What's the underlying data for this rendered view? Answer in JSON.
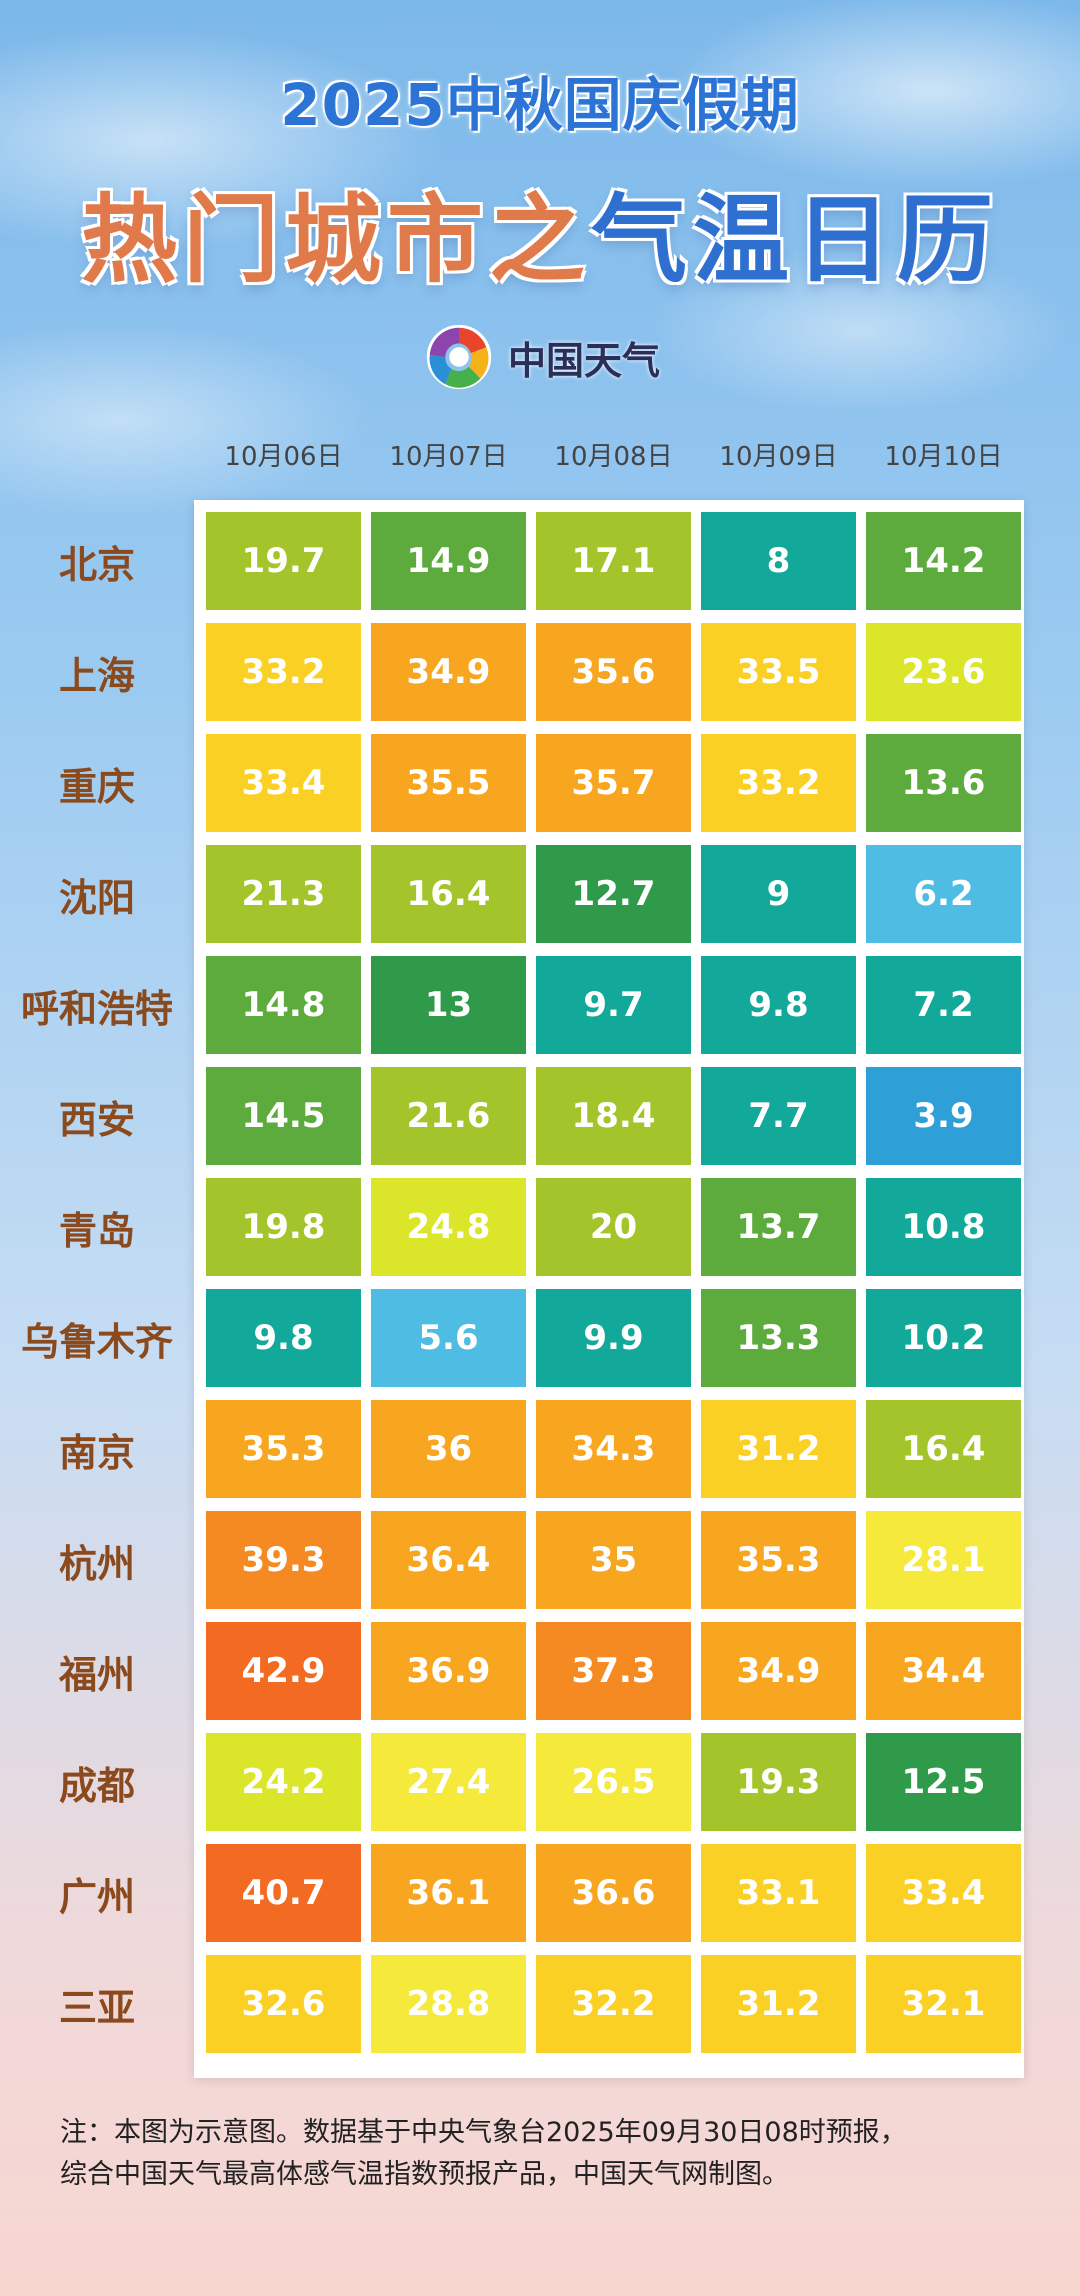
{
  "title_line1": "2025中秋国庆假期",
  "title_line2_part_a": "热门城市之",
  "title_line2_part_b": "气温日历",
  "logo": {
    "icon": "china-weather-logo-icon",
    "text": "中国天气"
  },
  "footnote": {
    "line1": "注：本图为示意图。数据基于中央气象台2025年09月30日08时预报，",
    "line2": "综合中国天气最高体感气温指数预报产品，中国天气网制图。"
  },
  "chart_data": {
    "type": "heatmap",
    "x": [
      "10月06日",
      "10月07日",
      "10月08日",
      "10月09日",
      "10月10日"
    ],
    "y": [
      "北京",
      "上海",
      "重庆",
      "沈阳",
      "呼和浩特",
      "西安",
      "青岛",
      "乌鲁木齐",
      "南京",
      "杭州",
      "福州",
      "成都",
      "广州",
      "三亚"
    ],
    "values": [
      [
        19.7,
        14.9,
        17.1,
        8,
        14.2
      ],
      [
        33.2,
        34.9,
        35.6,
        33.5,
        23.6
      ],
      [
        33.4,
        35.5,
        35.7,
        33.2,
        13.6
      ],
      [
        21.3,
        16.4,
        12.7,
        9,
        6.2
      ],
      [
        14.8,
        13,
        9.7,
        9.8,
        7.2
      ],
      [
        14.5,
        21.6,
        18.4,
        7.7,
        3.9
      ],
      [
        19.8,
        24.8,
        20,
        13.7,
        10.8
      ],
      [
        9.8,
        5.6,
        9.9,
        13.3,
        10.2
      ],
      [
        35.3,
        36,
        34.3,
        31.2,
        16.4
      ],
      [
        39.3,
        36.4,
        35,
        35.3,
        28.1
      ],
      [
        42.9,
        36.9,
        37.3,
        34.9,
        34.4
      ],
      [
        24.2,
        27.4,
        26.5,
        19.3,
        12.5
      ],
      [
        40.7,
        36.1,
        36.6,
        33.1,
        33.4
      ],
      [
        32.6,
        28.8,
        32.2,
        31.2,
        32.1
      ]
    ],
    "value_labels": [
      [
        "19.7",
        "14.9",
        "17.1",
        "8",
        "14.2"
      ],
      [
        "33.2",
        "34.9",
        "35.6",
        "33.5",
        "23.6"
      ],
      [
        "33.4",
        "35.5",
        "35.7",
        "33.2",
        "13.6"
      ],
      [
        "21.3",
        "16.4",
        "12.7",
        "9",
        "6.2"
      ],
      [
        "14.8",
        "13",
        "9.7",
        "9.8",
        "7.2"
      ],
      [
        "14.5",
        "21.6",
        "18.4",
        "7.7",
        "3.9"
      ],
      [
        "19.8",
        "24.8",
        "20",
        "13.7",
        "10.8"
      ],
      [
        "9.8",
        "5.6",
        "9.9",
        "13.3",
        "10.2"
      ],
      [
        "35.3",
        "36",
        "34.3",
        "31.2",
        "16.4"
      ],
      [
        "39.3",
        "36.4",
        "35",
        "35.3",
        "28.1"
      ],
      [
        "42.9",
        "36.9",
        "37.3",
        "34.9",
        "34.4"
      ],
      [
        "24.2",
        "27.4",
        "26.5",
        "19.3",
        "12.5"
      ],
      [
        "40.7",
        "36.1",
        "36.6",
        "33.1",
        "33.4"
      ],
      [
        "32.6",
        "28.8",
        "32.2",
        "31.2",
        "32.1"
      ]
    ],
    "color_scale": [
      {
        "max": 5,
        "color": "#2f9fd8"
      },
      {
        "max": 7,
        "color": "#4fbde3"
      },
      {
        "max": 11,
        "color": "#12a89a"
      },
      {
        "max": 13,
        "color": "#2e9a4a"
      },
      {
        "max": 16,
        "color": "#5cab3c"
      },
      {
        "max": 22,
        "color": "#a3c42a"
      },
      {
        "max": 26,
        "color": "#dbe62b"
      },
      {
        "max": 29,
        "color": "#f5e93c"
      },
      {
        "max": 34,
        "color": "#fbd025"
      },
      {
        "max": 37,
        "color": "#f8a620"
      },
      {
        "max": 40,
        "color": "#f58a22"
      },
      {
        "max": 99,
        "color": "#f36b22"
      }
    ],
    "grid": false
  }
}
